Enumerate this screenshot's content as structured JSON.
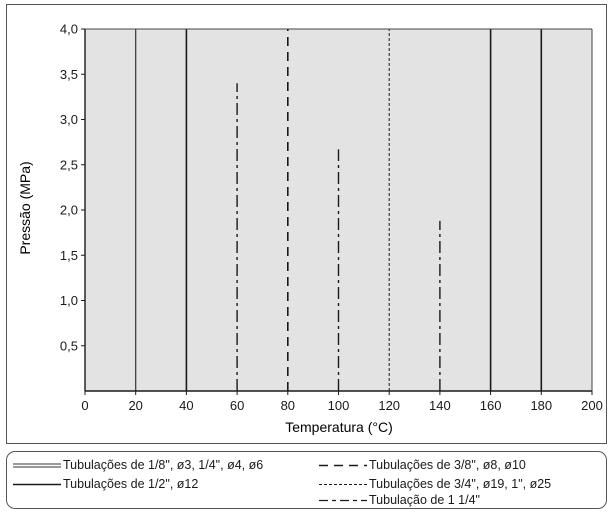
{
  "chart_data": {
    "type": "line",
    "xlabel": "Temperatura (°C)",
    "ylabel": "Pressão (MPa)",
    "xlim": [
      0,
      200
    ],
    "ylim": [
      0,
      4.0
    ],
    "x_ticks": [
      "0",
      "20",
      "40",
      "60",
      "80",
      "100",
      "120",
      "140",
      "160",
      "180",
      "200"
    ],
    "y_ticks": [
      "0,5",
      "1,0",
      "1,5",
      "2,0",
      "2,5",
      "3,0",
      "3,5",
      "4,0"
    ],
    "y_tick_values": [
      0.5,
      1.0,
      1.5,
      2.0,
      2.5,
      3.0,
      3.5,
      4.0
    ],
    "background_color": "#e3e3e3",
    "grid": false,
    "series": [
      {
        "name": "Tubulações de 1/8\", ø3, 1/4\", ø4, ø6",
        "style": "double",
        "points": [
          [
            20,
            0
          ],
          [
            20,
            4.0
          ]
        ]
      },
      {
        "name": "Tubulações de 1/2\", ø12",
        "style": "solid",
        "points": [
          [
            40,
            0
          ],
          [
            40,
            4.0
          ]
        ]
      },
      {
        "name": "Tubulações de 3/8\", ø8, ø10",
        "style": "dashed",
        "points": [
          [
            80,
            0
          ],
          [
            80,
            4.0
          ]
        ]
      },
      {
        "name": "Tubulações de 3/4\", ø19, 1\", ø25",
        "style": "dotted",
        "points": [
          [
            120,
            0
          ],
          [
            120,
            4.0
          ]
        ]
      },
      {
        "name": "Tubulação de 1 1/4\"",
        "style": "dash-dot",
        "points": [
          [
            60,
            0
          ],
          [
            60,
            3.4
          ]
        ]
      },
      {
        "name": "",
        "style": "solid",
        "points": [
          [
            160,
            0
          ],
          [
            160,
            4.0
          ]
        ]
      },
      {
        "name": "",
        "style": "solid",
        "points": [
          [
            180,
            0
          ],
          [
            180,
            4.0
          ]
        ]
      },
      {
        "name": "",
        "style": "dash-dot",
        "points": [
          [
            100,
            0
          ],
          [
            100,
            2.67
          ]
        ]
      },
      {
        "name": "",
        "style": "dash-dot",
        "points": [
          [
            140,
            0
          ],
          [
            140,
            1.88
          ]
        ]
      }
    ]
  },
  "legend": {
    "items": [
      {
        "label": "Tubulações de 1/8\", ø3, 1/4\", ø4, ø6",
        "style": "double"
      },
      {
        "label": "Tubulações de 1/2\", ø12",
        "style": "solid"
      },
      {
        "label": "Tubulações de 3/8\", ø8, ø10",
        "style": "dashed"
      },
      {
        "label": "Tubulações de 3/4\", ø19, 1\", ø25",
        "style": "dotted"
      },
      {
        "label": "Tubulação de 1 1/4\"",
        "style": "dash-dot"
      }
    ]
  }
}
